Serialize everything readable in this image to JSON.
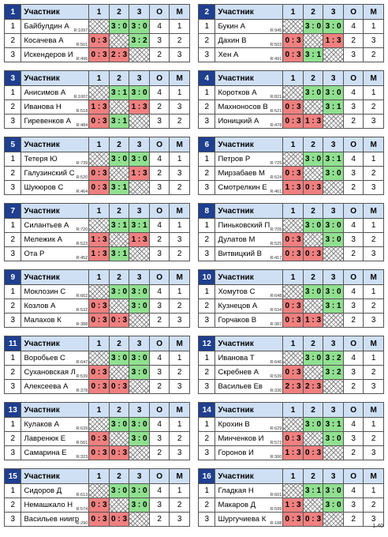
{
  "header": {
    "name": "Участник",
    "r1": "1",
    "r2": "2",
    "r3": "3",
    "o": "О",
    "m": "М"
  },
  "version": "1.40",
  "groups": [
    {
      "num": "1",
      "rows": [
        {
          "no": "1",
          "name": "Байбулдин А",
          "rating": "R:1097",
          "r": [
            "",
            "3 : 0",
            "3 : 0"
          ],
          "o": "4",
          "m": "1"
        },
        {
          "no": "2",
          "name": "Косачева А",
          "rating": "R:501",
          "r": [
            "0 : 3",
            "",
            "3 : 2"
          ],
          "o": "3",
          "m": "2"
        },
        {
          "no": "3",
          "name": "Искендеров И",
          "rating": "R:496",
          "r": [
            "0 : 3",
            "2 : 3",
            ""
          ],
          "o": "2",
          "m": "3"
        }
      ]
    },
    {
      "num": "2",
      "rows": [
        {
          "no": "1",
          "name": "Букин А",
          "rating": "R:945",
          "r": [
            "",
            "3 : 0",
            "3 : 0"
          ],
          "o": "4",
          "m": "1"
        },
        {
          "no": "2",
          "name": "Дахин В",
          "rating": "R:503",
          "r": [
            "0 : 3",
            "",
            "1 : 3"
          ],
          "o": "2",
          "m": "3"
        },
        {
          "no": "3",
          "name": "Хен А",
          "rating": "R:491",
          "r": [
            "0 : 3",
            "3 : 1",
            ""
          ],
          "o": "3",
          "m": "2"
        }
      ]
    },
    {
      "num": "3",
      "rows": [
        {
          "no": "1",
          "name": "Анисимов А",
          "rating": "R:1007",
          "r": [
            "",
            "3 : 1",
            "3 : 0"
          ],
          "o": "4",
          "m": "1"
        },
        {
          "no": "2",
          "name": "Иванова Н",
          "rating": "R:518",
          "r": [
            "1 : 3",
            "",
            "1 : 3"
          ],
          "o": "2",
          "m": "3"
        },
        {
          "no": "3",
          "name": "Гиревенков А",
          "rating": "R:484",
          "r": [
            "0 : 3",
            "3 : 1",
            ""
          ],
          "o": "3",
          "m": "2"
        }
      ]
    },
    {
      "num": "4",
      "rows": [
        {
          "no": "1",
          "name": "Коротков А",
          "rating": "R:821",
          "r": [
            "",
            "3 : 0",
            "3 : 0"
          ],
          "o": "4",
          "m": "1"
        },
        {
          "no": "2",
          "name": "Махноносов В",
          "rating": "R:521",
          "r": [
            "0 : 3",
            "",
            "3 : 1"
          ],
          "o": "3",
          "m": "2"
        },
        {
          "no": "3",
          "name": "Ионицкий А",
          "rating": "R:478",
          "r": [
            "0 : 3",
            "1 : 3",
            ""
          ],
          "o": "2",
          "m": "3"
        }
      ]
    },
    {
      "num": "5",
      "rows": [
        {
          "no": "1",
          "name": "Тетеря Ю",
          "rating": "R:739",
          "r": [
            "",
            "3 : 0",
            "3 : 0"
          ],
          "o": "4",
          "m": "1"
        },
        {
          "no": "2",
          "name": "Галузинский С",
          "rating": "R:520",
          "r": [
            "0 : 3",
            "",
            "1 : 3"
          ],
          "o": "2",
          "m": "3"
        },
        {
          "no": "3",
          "name": "Шукюров С",
          "rating": "R:464",
          "r": [
            "0 : 3",
            "3 : 1",
            ""
          ],
          "o": "3",
          "m": "2"
        }
      ]
    },
    {
      "num": "6",
      "rows": [
        {
          "no": "1",
          "name": "Петров Р",
          "rating": "R:725",
          "r": [
            "",
            "3 : 0",
            "3 : 1"
          ],
          "o": "4",
          "m": "1"
        },
        {
          "no": "2",
          "name": "Мирзабаев М",
          "rating": "R:524",
          "r": [
            "0 : 3",
            "",
            "3 : 0"
          ],
          "o": "3",
          "m": "2"
        },
        {
          "no": "3",
          "name": "Смотрелкин Е",
          "rating": "R:461",
          "r": [
            "1 : 3",
            "0 : 3",
            ""
          ],
          "o": "2",
          "m": "3"
        }
      ]
    },
    {
      "num": "7",
      "rows": [
        {
          "no": "1",
          "name": "Силантьев А",
          "rating": "R:720",
          "r": [
            "",
            "3 : 1",
            "3 : 1"
          ],
          "o": "4",
          "m": "1"
        },
        {
          "no": "2",
          "name": "Мележик А",
          "rating": "R:523",
          "r": [
            "1 : 3",
            "",
            "1 : 3"
          ],
          "o": "2",
          "m": "3"
        },
        {
          "no": "3",
          "name": "Ота Р",
          "rating": "R:452",
          "r": [
            "1 : 3",
            "3 : 1",
            ""
          ],
          "o": "3",
          "m": "2"
        }
      ]
    },
    {
      "num": "8",
      "rows": [
        {
          "no": "1",
          "name": "Пиньковский П",
          "rating": "R:705",
          "r": [
            "",
            "3 : 0",
            "3 : 0"
          ],
          "o": "4",
          "m": "1"
        },
        {
          "no": "2",
          "name": "Дулатов М",
          "rating": "R:525",
          "r": [
            "0 : 3",
            "",
            "3 : 0"
          ],
          "o": "3",
          "m": "2"
        },
        {
          "no": "3",
          "name": "Витвицкий В",
          "rating": "R:417",
          "r": [
            "0 : 3",
            "0 : 3",
            ""
          ],
          "o": "2",
          "m": "3"
        }
      ]
    },
    {
      "num": "9",
      "rows": [
        {
          "no": "1",
          "name": "Моклозин С",
          "rating": "R:662",
          "r": [
            "",
            "3 : 0",
            "3 : 0"
          ],
          "o": "4",
          "m": "1"
        },
        {
          "no": "2",
          "name": "Козлов А",
          "rating": "R:532",
          "r": [
            "0 : 3",
            "",
            "3 : 0"
          ],
          "o": "3",
          "m": "2"
        },
        {
          "no": "3",
          "name": "Малахов К",
          "rating": "R:388",
          "r": [
            "0 : 3",
            "0 : 3",
            ""
          ],
          "o": "2",
          "m": "3"
        }
      ]
    },
    {
      "num": "10",
      "rows": [
        {
          "no": "1",
          "name": "Хомутов С",
          "rating": "R:648",
          "r": [
            "",
            "3 : 0",
            "3 : 0"
          ],
          "o": "4",
          "m": "1"
        },
        {
          "no": "2",
          "name": "Кузнецов А",
          "rating": "R:534",
          "r": [
            "0 : 3",
            "",
            "3 : 1"
          ],
          "o": "3",
          "m": "2"
        },
        {
          "no": "3",
          "name": "Горчаков В",
          "rating": "R:387",
          "r": [
            "0 : 3",
            "1 : 3",
            ""
          ],
          "o": "2",
          "m": "3"
        }
      ]
    },
    {
      "num": "11",
      "rows": [
        {
          "no": "1",
          "name": "Воробьев С",
          "rating": "R:647",
          "r": [
            "",
            "3 : 0",
            "3 : 0"
          ],
          "o": "4",
          "m": "1"
        },
        {
          "no": "2",
          "name": "Сухановская Л",
          "rating": "R:539",
          "r": [
            "0 : 3",
            "",
            "3 : 0"
          ],
          "o": "3",
          "m": "2"
        },
        {
          "no": "3",
          "name": "Алексеева А",
          "rating": "R:378",
          "r": [
            "0 : 3",
            "0 : 3",
            ""
          ],
          "o": "2",
          "m": "3"
        }
      ]
    },
    {
      "num": "12",
      "rows": [
        {
          "no": "1",
          "name": "Иванова Т",
          "rating": "R:646",
          "r": [
            "",
            "3 : 0",
            "3 : 2"
          ],
          "o": "4",
          "m": "1"
        },
        {
          "no": "2",
          "name": "Скребнев А",
          "rating": "R:539",
          "r": [
            "0 : 3",
            "",
            "3 : 2"
          ],
          "o": "3",
          "m": "2"
        },
        {
          "no": "3",
          "name": "Васильев Ев",
          "rating": "R:330",
          "r": [
            "2 : 3",
            "2 : 3",
            ""
          ],
          "o": "2",
          "m": "3"
        }
      ]
    },
    {
      "num": "13",
      "rows": [
        {
          "no": "1",
          "name": "Кулаков А",
          "rating": "R:639",
          "r": [
            "",
            "3 : 0",
            "3 : 0"
          ],
          "o": "4",
          "m": "1"
        },
        {
          "no": "2",
          "name": "Лавренюк Е",
          "rating": "R:561",
          "r": [
            "0 : 3",
            "",
            "3 : 0"
          ],
          "o": "3",
          "m": "2"
        },
        {
          "no": "3",
          "name": "Самарина Е",
          "rating": "R:323",
          "r": [
            "0 : 3",
            "0 : 3",
            ""
          ],
          "o": "2",
          "m": "3"
        }
      ]
    },
    {
      "num": "14",
      "rows": [
        {
          "no": "1",
          "name": "Крохин В",
          "rating": "R:629",
          "r": [
            "",
            "3 : 0",
            "3 : 1"
          ],
          "o": "4",
          "m": "1"
        },
        {
          "no": "2",
          "name": "Минченков И",
          "rating": "R:572",
          "r": [
            "0 : 3",
            "",
            "3 : 0"
          ],
          "o": "3",
          "m": "2"
        },
        {
          "no": "3",
          "name": "Горонов И",
          "rating": "R:300",
          "r": [
            "1 : 3",
            "0 : 3",
            ""
          ],
          "o": "2",
          "m": "3"
        }
      ]
    },
    {
      "num": "15",
      "rows": [
        {
          "no": "1",
          "name": "Сидоров Д",
          "rating": "R:613",
          "r": [
            "",
            "3 : 0",
            "3 : 0"
          ],
          "o": "4",
          "m": "1"
        },
        {
          "no": "2",
          "name": "Немашкало Н",
          "rating": "R:574",
          "r": [
            "0 : 3",
            "",
            "3 : 0"
          ],
          "o": "3",
          "m": "2"
        },
        {
          "no": "3",
          "name": "Васильев ниигр",
          "rating": "R:290",
          "r": [
            "0 : 3",
            "0 : 3",
            ""
          ],
          "o": "2",
          "m": "3"
        }
      ]
    },
    {
      "num": "16",
      "rows": [
        {
          "no": "1",
          "name": "Гладкая Н",
          "rating": "R:601",
          "r": [
            "",
            "3 : 1",
            "3 : 0"
          ],
          "o": "4",
          "m": "1"
        },
        {
          "no": "2",
          "name": "Макаров Д",
          "rating": "R:599",
          "r": [
            "1 : 3",
            "",
            "3 : 0"
          ],
          "o": "3",
          "m": "2"
        },
        {
          "no": "3",
          "name": "Шургучиева К",
          "rating": "R:188",
          "r": [
            "0 : 3",
            "0 : 3",
            ""
          ],
          "o": "2",
          "m": "3"
        }
      ]
    }
  ]
}
